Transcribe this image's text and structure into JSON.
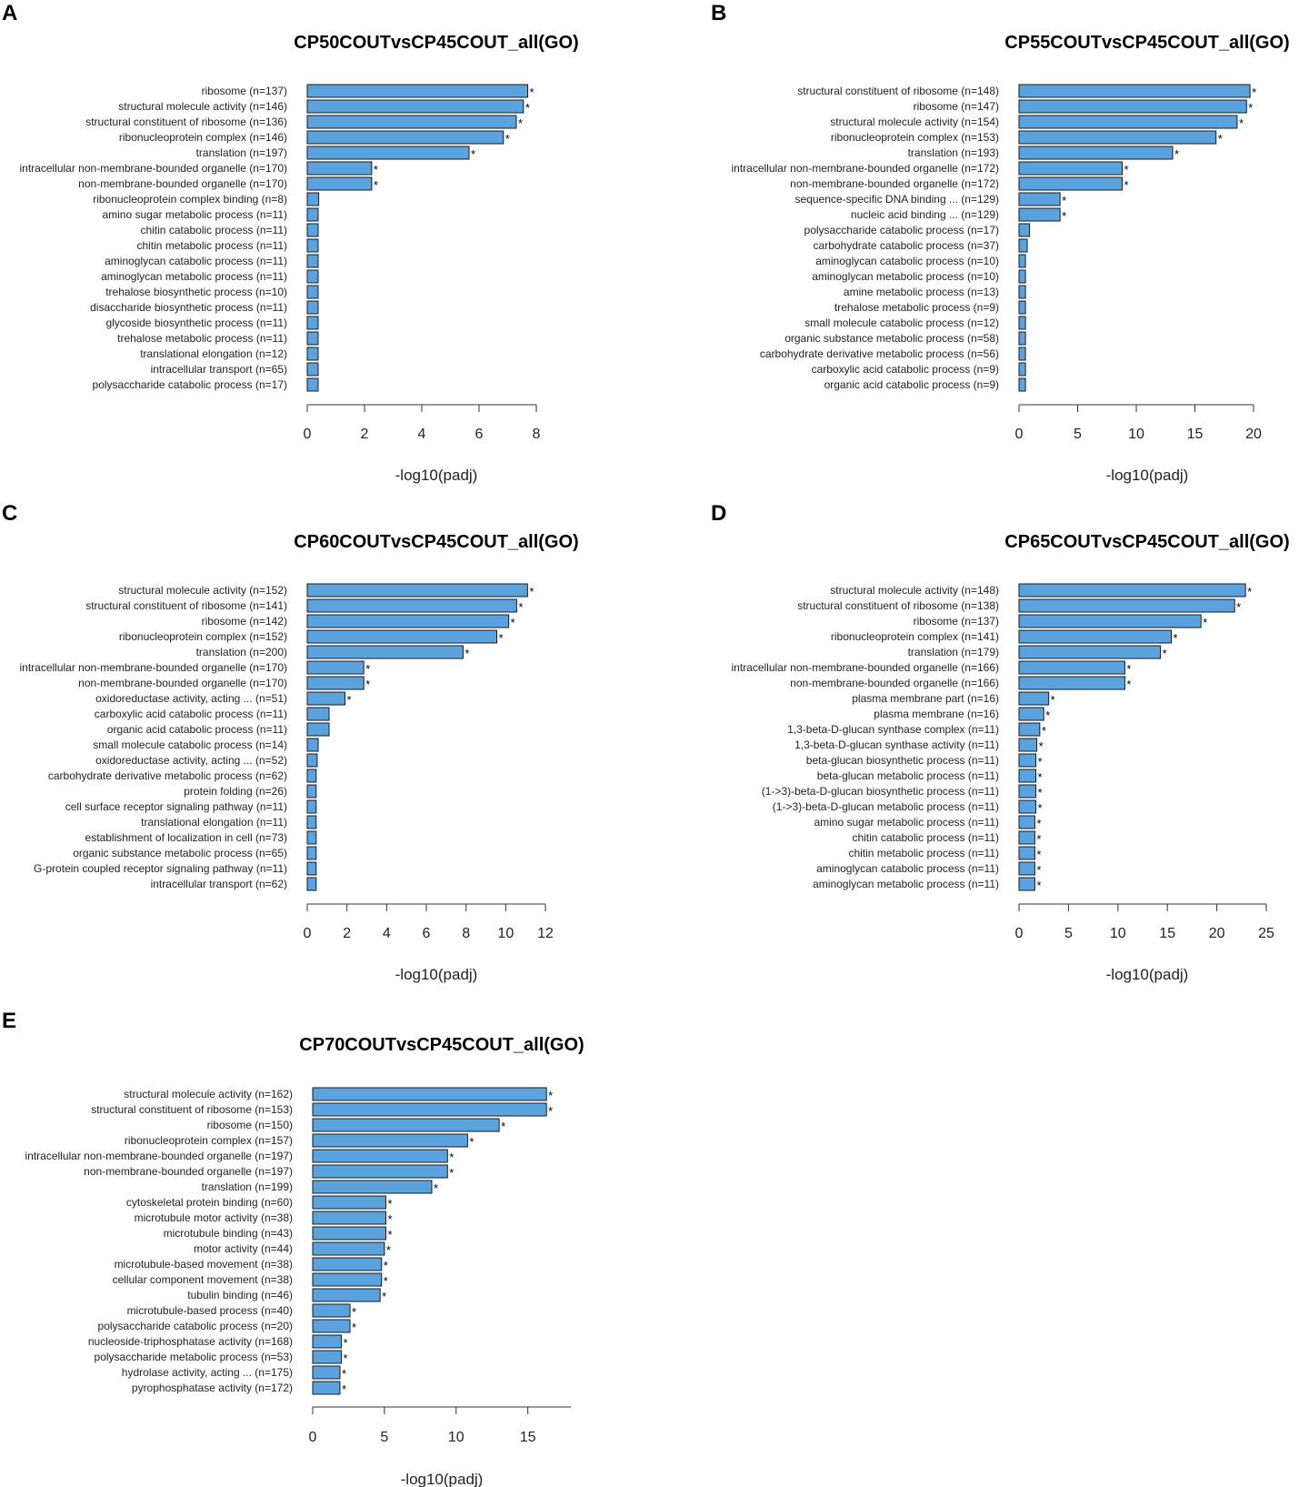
{
  "chart_data": [
    {
      "panel": "A",
      "type": "bar",
      "orientation": "horizontal",
      "title": "CP50COUTvsCP45COUT_all(GO)",
      "xlabel": "-log10(padj)",
      "xlim": [
        0,
        8
      ],
      "xticks": [
        0,
        2,
        4,
        6,
        8
      ],
      "categories": [
        "ribosome (n=137)",
        "structural molecule activity (n=146)",
        "structural constituent of ribosome (n=136)",
        "ribonucleoprotein complex (n=146)",
        "translation (n=197)",
        "intracellular non-membrane-bounded organelle (n=170)",
        "non-membrane-bounded organelle (n=170)",
        "ribonucleoprotein complex binding (n=8)",
        "amino sugar metabolic process (n=11)",
        "chitin catabolic process (n=11)",
        "chitin metabolic process (n=11)",
        "aminoglycan catabolic process (n=11)",
        "aminoglycan metabolic process (n=11)",
        "trehalose biosynthetic process (n=10)",
        "disaccharide biosynthetic process (n=11)",
        "glycoside biosynthetic process (n=11)",
        "trehalose metabolic process (n=11)",
        "translational elongation (n=12)",
        "intracellular transport (n=65)",
        "polysaccharide catabolic process (n=17)"
      ],
      "values": [
        7.7,
        7.55,
        7.3,
        6.85,
        5.65,
        2.25,
        2.25,
        0.4,
        0.38,
        0.38,
        0.38,
        0.38,
        0.38,
        0.38,
        0.38,
        0.38,
        0.38,
        0.38,
        0.38,
        0.38
      ],
      "significant": [
        true,
        true,
        true,
        true,
        true,
        true,
        true,
        false,
        false,
        false,
        false,
        false,
        false,
        false,
        false,
        false,
        false,
        false,
        false,
        false
      ],
      "marker": "*"
    },
    {
      "panel": "B",
      "type": "bar",
      "orientation": "horizontal",
      "title": "CP55COUTvsCP45COUT_all(GO)",
      "xlabel": "-log10(padj)",
      "xlim": [
        0,
        20
      ],
      "xticks": [
        0,
        5,
        10,
        15,
        20
      ],
      "categories": [
        "structural constituent of ribosome (n=148)",
        "ribosome (n=147)",
        "structural molecule activity (n=154)",
        "ribonucleoprotein complex (n=153)",
        "translation (n=193)",
        "intracellular non-membrane-bounded organelle (n=172)",
        "non-membrane-bounded organelle (n=172)",
        "sequence-specific DNA binding ... (n=129)",
        "nucleic acid binding ... (n=129)",
        "polysaccharide catabolic process (n=17)",
        "carbohydrate catabolic process (n=37)",
        "aminoglycan catabolic process (n=10)",
        "aminoglycan metabolic process (n=10)",
        "amine metabolic process (n=13)",
        "trehalose metabolic process (n=9)",
        "small molecule catabolic process (n=12)",
        "organic substance metabolic process (n=58)",
        "carbohydrate derivative metabolic process (n=56)",
        "carboxylic acid catabolic process (n=9)",
        "organic acid catabolic process (n=9)"
      ],
      "values": [
        19.7,
        19.4,
        18.6,
        16.8,
        13.1,
        8.8,
        8.8,
        3.5,
        3.5,
        0.9,
        0.7,
        0.55,
        0.55,
        0.55,
        0.55,
        0.55,
        0.55,
        0.55,
        0.55,
        0.55
      ],
      "significant": [
        true,
        true,
        true,
        true,
        true,
        true,
        true,
        true,
        true,
        false,
        false,
        false,
        false,
        false,
        false,
        false,
        false,
        false,
        false,
        false
      ],
      "marker": "*"
    },
    {
      "panel": "C",
      "type": "bar",
      "orientation": "horizontal",
      "title": "CP60COUTvsCP45COUT_all(GO)",
      "xlabel": "-log10(padj)",
      "xlim": [
        0,
        12
      ],
      "xticks": [
        0,
        2,
        4,
        6,
        8,
        10,
        12
      ],
      "categories": [
        "structural molecule activity (n=152)",
        "structural constituent of ribosome (n=141)",
        "ribosome (n=142)",
        "ribonucleoprotein complex (n=152)",
        "translation (n=200)",
        "intracellular non-membrane-bounded organelle (n=170)",
        "non-membrane-bounded organelle (n=170)",
        "oxidoreductase activity, acting ... (n=51)",
        "carboxylic acid catabolic process (n=11)",
        "organic acid catabolic process (n=11)",
        "small molecule catabolic process (n=14)",
        "oxidoreductase activity, acting ... (n=52)",
        "carbohydrate derivative metabolic process (n=62)",
        "protein folding (n=26)",
        "cell surface receptor signaling pathway (n=11)",
        "translational elongation (n=11)",
        "establishment of localization in cell (n=73)",
        "organic substance metabolic process (n=65)",
        "G-protein coupled receptor signaling pathway (n=11)",
        "intracellular transport (n=62)"
      ],
      "values": [
        11.1,
        10.55,
        10.15,
        9.55,
        7.85,
        2.85,
        2.85,
        1.9,
        1.1,
        1.1,
        0.55,
        0.5,
        0.45,
        0.45,
        0.45,
        0.45,
        0.45,
        0.45,
        0.45,
        0.45
      ],
      "significant": [
        true,
        true,
        true,
        true,
        true,
        true,
        true,
        true,
        false,
        false,
        false,
        false,
        false,
        false,
        false,
        false,
        false,
        false,
        false,
        false
      ],
      "marker": "*"
    },
    {
      "panel": "D",
      "type": "bar",
      "orientation": "horizontal",
      "title": "CP65COUTvsCP45COUT_all(GO)",
      "xlabel": "-log10(padj)",
      "xlim": [
        0,
        25
      ],
      "xticks": [
        0,
        5,
        10,
        15,
        20,
        25
      ],
      "categories": [
        "structural molecule activity (n=148)",
        "structural constituent of ribosome (n=138)",
        "ribosome (n=137)",
        "ribonucleoprotein complex (n=141)",
        "translation (n=179)",
        "intracellular non-membrane-bounded organelle (n=166)",
        "non-membrane-bounded organelle (n=166)",
        "plasma membrane part (n=16)",
        "plasma membrane (n=16)",
        "1,3-beta-D-glucan synthase complex (n=11)",
        "1,3-beta-D-glucan synthase activity (n=11)",
        "beta-glucan biosynthetic process (n=11)",
        "beta-glucan metabolic process (n=11)",
        "(1->3)-beta-D-glucan biosynthetic process (n=11)",
        "(1->3)-beta-D-glucan metabolic process (n=11)",
        "amino sugar metabolic process (n=11)",
        "chitin catabolic process (n=11)",
        "chitin metabolic process (n=11)",
        "aminoglycan catabolic process (n=11)",
        "aminoglycan metabolic process (n=11)"
      ],
      "values": [
        22.9,
        21.8,
        18.4,
        15.4,
        14.3,
        10.7,
        10.7,
        3.0,
        2.5,
        2.1,
        1.8,
        1.7,
        1.7,
        1.7,
        1.7,
        1.6,
        1.6,
        1.6,
        1.6,
        1.6
      ],
      "significant": [
        true,
        true,
        true,
        true,
        true,
        true,
        true,
        true,
        true,
        true,
        true,
        true,
        true,
        true,
        true,
        true,
        true,
        true,
        true,
        true
      ],
      "marker": "*"
    },
    {
      "panel": "E",
      "type": "bar",
      "orientation": "horizontal",
      "title": "CP70COUTvsCP45COUT_all(GO)",
      "xlabel": "-log10(padj)",
      "xlim": [
        0,
        18
      ],
      "xticks": [
        0,
        5,
        10,
        15
      ],
      "categories": [
        "structural molecule activity (n=162)",
        "structural constituent of ribosome (n=153)",
        "ribosome (n=150)",
        "ribonucleoprotein complex (n=157)",
        "intracellular non-membrane-bounded organelle (n=197)",
        "non-membrane-bounded organelle (n=197)",
        "translation (n=199)",
        "cytoskeletal protein binding (n=60)",
        "microtubule motor activity (n=38)",
        "microtubule binding (n=43)",
        "motor activity (n=44)",
        "microtubule-based movement (n=38)",
        "cellular component movement (n=38)",
        "tubulin binding (n=46)",
        "microtubule-based process (n=40)",
        "polysaccharide catabolic process (n=20)",
        "nucleoside-triphosphatase activity (n=168)",
        "polysaccharide metabolic process (n=53)",
        "hydrolase activity, acting ... (n=175)",
        "pyrophosphatase activity (n=172)"
      ],
      "values": [
        16.3,
        16.3,
        13.0,
        10.8,
        9.4,
        9.4,
        8.3,
        5.1,
        5.1,
        5.1,
        5.0,
        4.8,
        4.8,
        4.7,
        2.6,
        2.6,
        2.0,
        2.0,
        1.9,
        1.9
      ],
      "significant": [
        true,
        true,
        true,
        true,
        true,
        true,
        true,
        true,
        true,
        true,
        true,
        true,
        true,
        true,
        true,
        true,
        true,
        true,
        true,
        true
      ],
      "marker": "*"
    }
  ]
}
